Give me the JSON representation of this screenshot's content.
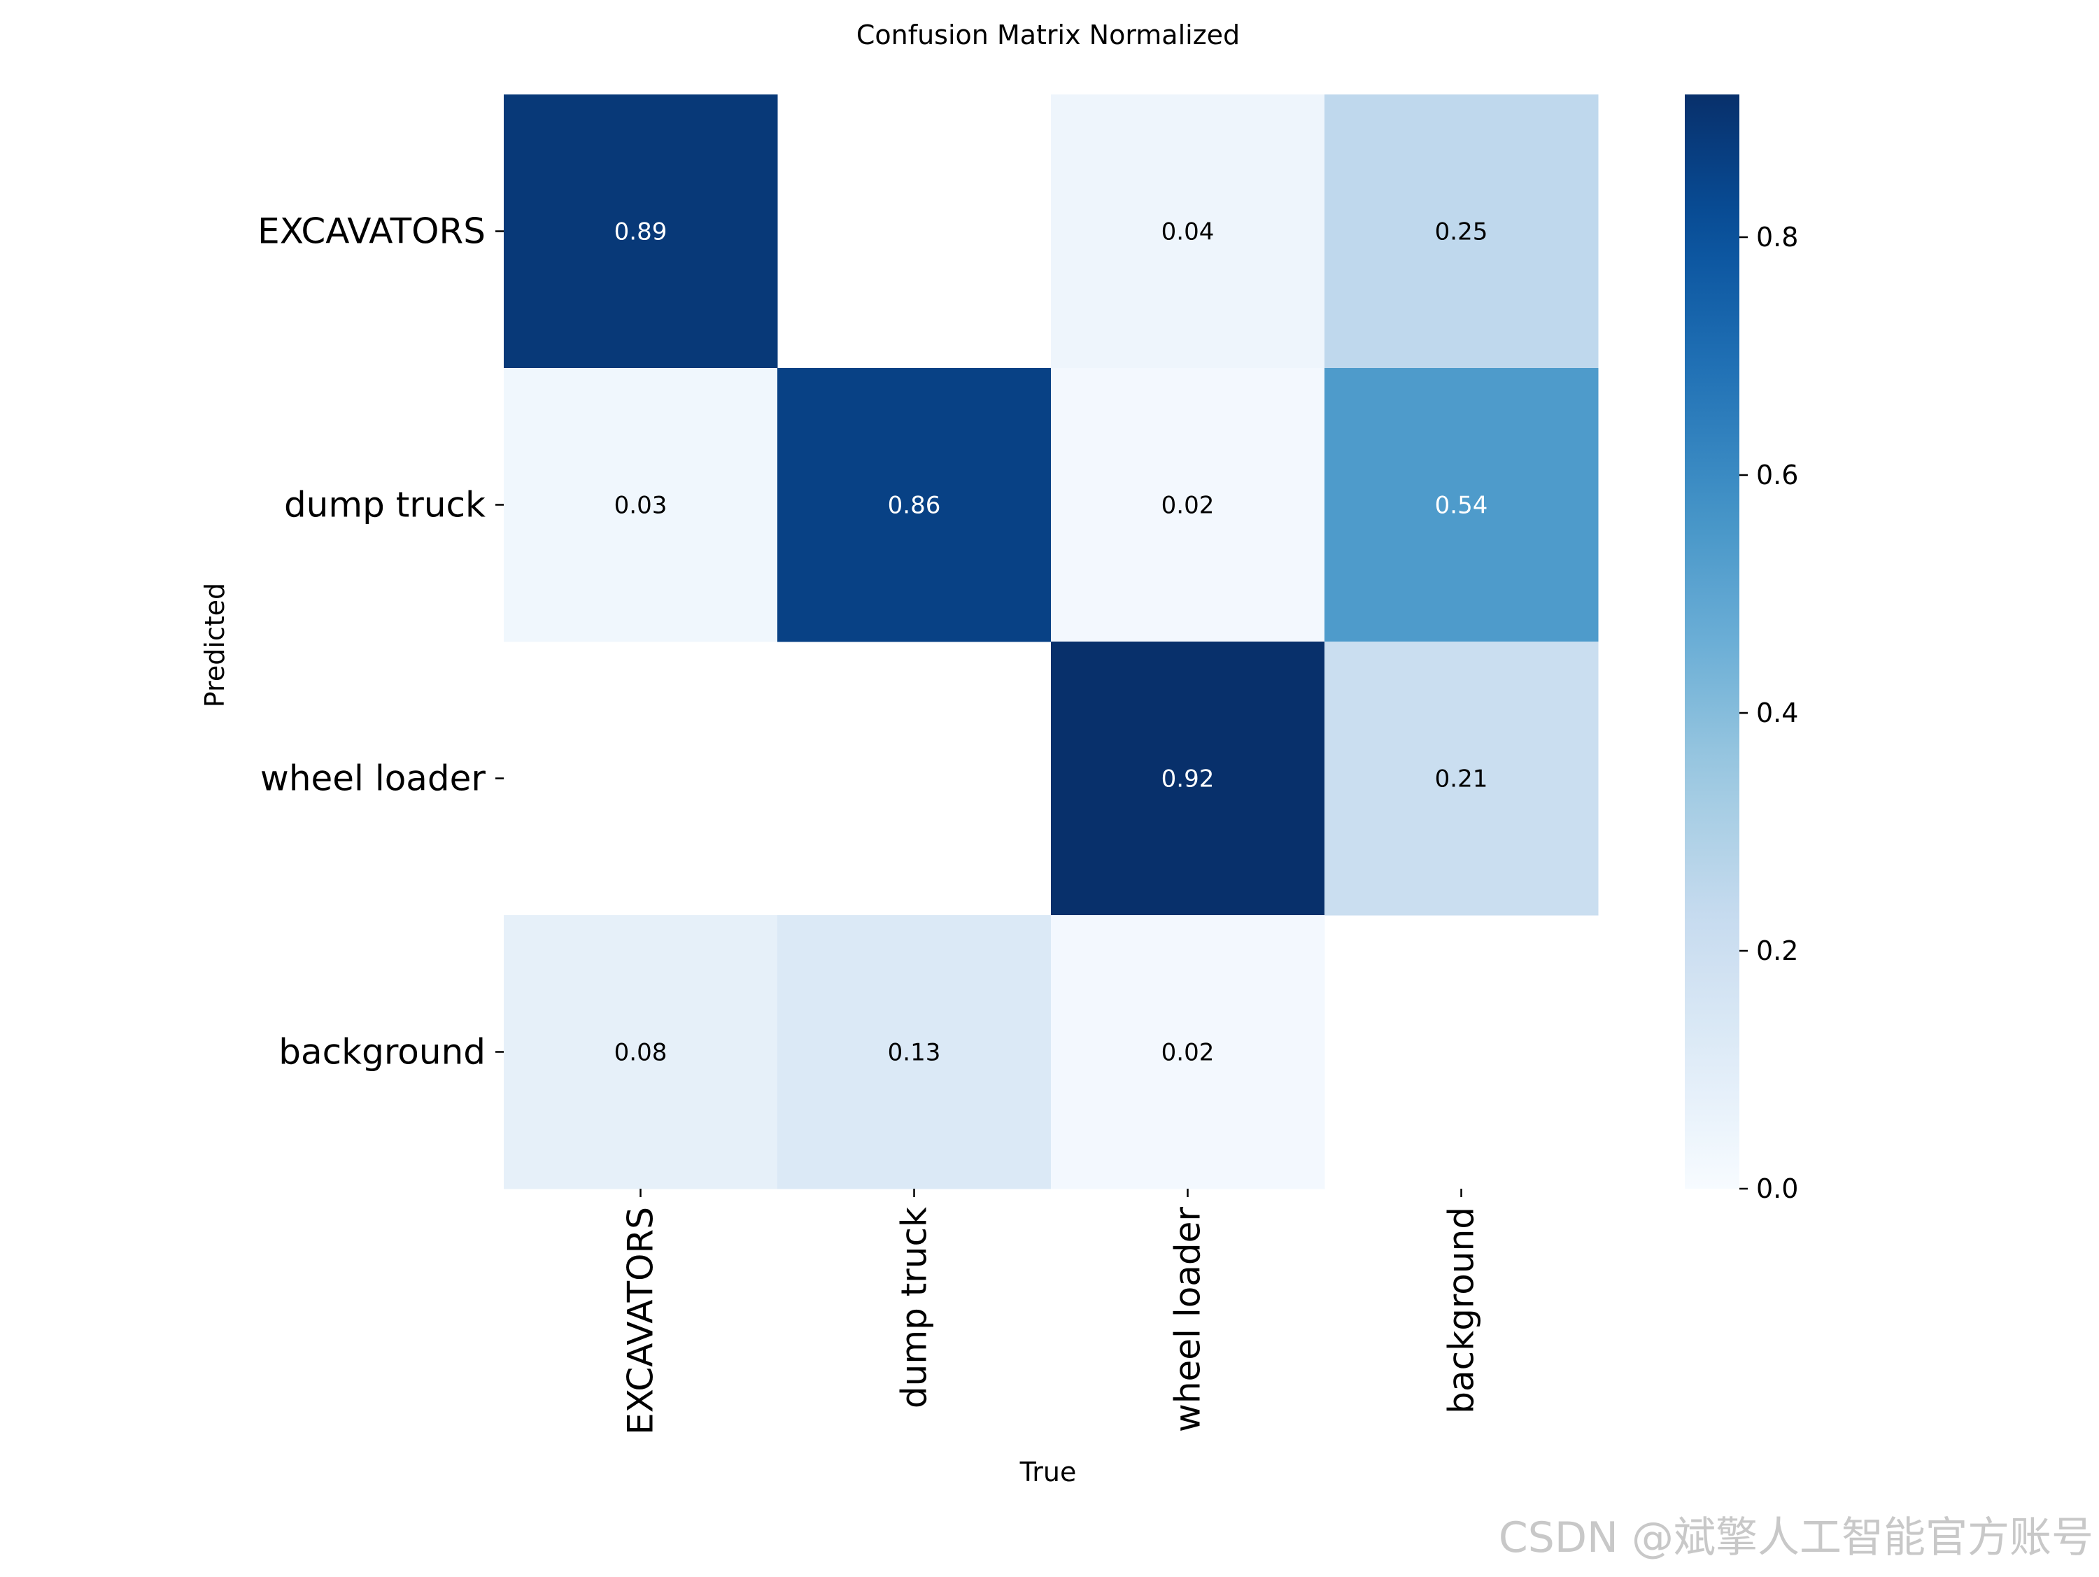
{
  "chart_data": {
    "type": "heatmap",
    "title": "Confusion Matrix Normalized",
    "xlabel": "True",
    "ylabel": "Predicted",
    "x_categories": [
      "EXCAVATORS",
      "dump truck",
      "wheel loader",
      "background"
    ],
    "y_categories": [
      "EXCAVATORS",
      "dump truck",
      "wheel loader",
      "background"
    ],
    "values": [
      [
        0.89,
        null,
        0.04,
        0.25
      ],
      [
        0.03,
        0.86,
        0.02,
        0.54
      ],
      [
        null,
        null,
        0.92,
        0.21
      ],
      [
        0.08,
        0.13,
        0.02,
        null
      ]
    ],
    "colormap": "Blues",
    "vmin": 0.0,
    "vmax": 0.92,
    "colorbar_ticks": [
      0.0,
      0.2,
      0.4,
      0.6,
      0.8
    ],
    "colorbar_tick_labels": [
      "0.0",
      "0.2",
      "0.4",
      "0.6",
      "0.8"
    ]
  },
  "watermark": "CSDN @斌擎人工智能官方账号"
}
